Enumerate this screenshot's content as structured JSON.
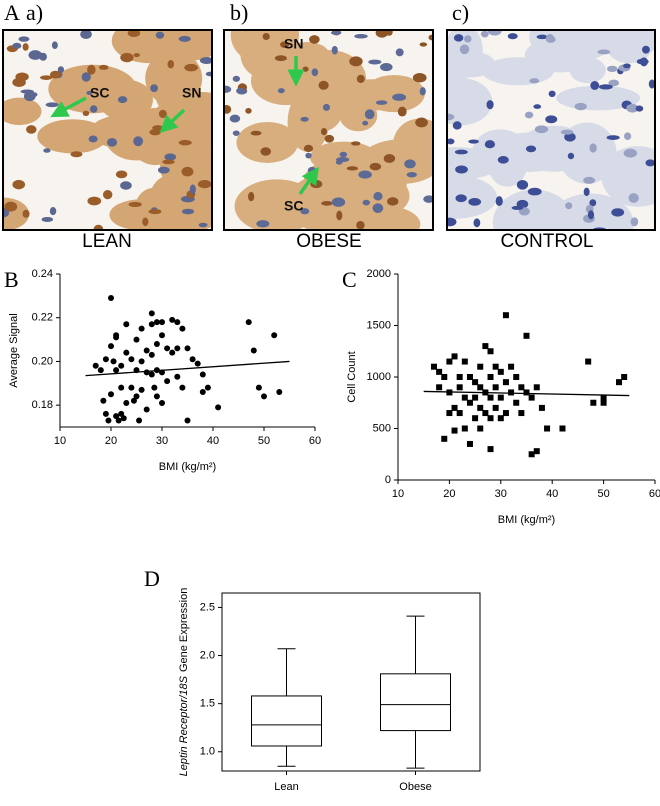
{
  "panel_a": {
    "label": "A",
    "images": [
      {
        "label": "a)",
        "caption": "LEAN",
        "annotations": [
          "SC",
          "SN"
        ]
      },
      {
        "label": "b)",
        "caption": "OBESE",
        "annotations": [
          "SN",
          "SC"
        ]
      },
      {
        "label": "c)",
        "caption": "CONTROL"
      }
    ]
  },
  "chart_data": [
    {
      "type": "scatter",
      "panel_label": "B",
      "ylabel": "Average Signal",
      "xlabel": "BMI (kg/m²)",
      "marker": "circle",
      "color": "#000000",
      "xlim": [
        10,
        60
      ],
      "xticks": [
        10,
        20,
        30,
        40,
        50,
        60
      ],
      "ylim": [
        0.17,
        0.24
      ],
      "yticks": [
        0.18,
        {
          "value": 0.2,
          "label": "0.20"
        },
        0.22,
        0.24
      ],
      "x": [
        17,
        18,
        18.5,
        19,
        19,
        19.5,
        20,
        20,
        20,
        20.5,
        21,
        21,
        21,
        21,
        21.5,
        22,
        22,
        22,
        22.5,
        23,
        23,
        23,
        24,
        24,
        24.5,
        25,
        25,
        25,
        25.5,
        26,
        26,
        26,
        27,
        27,
        27,
        28,
        28,
        28,
        28,
        28.5,
        29,
        29,
        29,
        29,
        30,
        30,
        30,
        30,
        31,
        31,
        32,
        32,
        33,
        33,
        33,
        34,
        34,
        35,
        35,
        36,
        37,
        38,
        38,
        39,
        41,
        47,
        48,
        49,
        50,
        52,
        53
      ],
      "values": [
        0.198,
        0.196,
        0.182,
        0.201,
        0.176,
        0.173,
        0.229,
        0.207,
        0.185,
        0.2,
        0.211,
        0.212,
        0.196,
        0.175,
        0.173,
        0.198,
        0.188,
        0.176,
        0.174,
        0.217,
        0.204,
        0.181,
        0.201,
        0.188,
        0.182,
        0.21,
        0.196,
        0.184,
        0.173,
        0.215,
        0.2,
        0.187,
        0.205,
        0.195,
        0.178,
        0.222,
        0.217,
        0.203,
        0.194,
        0.188,
        0.218,
        0.208,
        0.196,
        0.184,
        0.218,
        0.212,
        0.195,
        0.181,
        0.206,
        0.191,
        0.219,
        0.204,
        0.218,
        0.206,
        0.193,
        0.215,
        0.188,
        0.206,
        0.173,
        0.201,
        0.199,
        0.194,
        0.186,
        0.188,
        0.179,
        0.218,
        0.205,
        0.188,
        0.184,
        0.212,
        0.186
      ],
      "trendline": {
        "x": [
          15,
          55
        ],
        "values": [
          0.1935,
          0.2
        ]
      }
    },
    {
      "type": "scatter",
      "panel_label": "C",
      "ylabel": "Cell Count",
      "xlabel": "BMI (kg/m²)",
      "marker": "square",
      "color": "#000000",
      "xlim": [
        10,
        60
      ],
      "xticks": [
        10,
        20,
        30,
        40,
        50,
        60
      ],
      "ylim": [
        0,
        2000
      ],
      "yticks": [
        0,
        500,
        1000,
        1500,
        2000
      ],
      "x": [
        17,
        18,
        18,
        19,
        19,
        20,
        20,
        20,
        21,
        21,
        21,
        22,
        22,
        22,
        23,
        23,
        23,
        24,
        24,
        24,
        25,
        25,
        25,
        26,
        26,
        26,
        26,
        27,
        27,
        27,
        28,
        28,
        28,
        28,
        28,
        29,
        29,
        29,
        30,
        30,
        30,
        31,
        31,
        31,
        32,
        32,
        33,
        33,
        34,
        34,
        35,
        35,
        36,
        36,
        37,
        37,
        38,
        39,
        42,
        47,
        48,
        50,
        50,
        53,
        54
      ],
      "values": [
        1100,
        1050,
        900,
        1000,
        400,
        1150,
        850,
        650,
        1200,
        700,
        480,
        1000,
        900,
        650,
        1150,
        800,
        500,
        1000,
        750,
        350,
        950,
        800,
        600,
        1100,
        900,
        700,
        500,
        1300,
        850,
        650,
        1250,
        1000,
        800,
        600,
        300,
        1100,
        900,
        700,
        1050,
        800,
        600,
        1600,
        950,
        650,
        1100,
        850,
        1000,
        750,
        900,
        650,
        1400,
        850,
        800,
        250,
        900,
        280,
        700,
        500,
        500,
        1150,
        750,
        800,
        750,
        950,
        1000
      ],
      "trendline": {
        "x": [
          15,
          55
        ],
        "values": [
          860,
          820
        ]
      }
    },
    {
      "type": "box",
      "panel_label": "D",
      "ylabel": [
        "Leptin Receptor/18S",
        "Gene Expression"
      ],
      "categories": [
        "Lean",
        "Obese"
      ],
      "ylim": [
        0.8,
        2.65
      ],
      "yticks": [
        {
          "value": 1,
          "label": "1.0"
        },
        1.5,
        {
          "value": 2,
          "label": "2.0"
        },
        2.5
      ],
      "boxes": [
        {
          "min": 0.85,
          "q1": 1.06,
          "median": 1.28,
          "q3": 1.58,
          "max": 2.07
        },
        {
          "min": 0.83,
          "q1": 1.22,
          "median": 1.49,
          "q3": 1.81,
          "max": 2.41
        }
      ]
    }
  ]
}
